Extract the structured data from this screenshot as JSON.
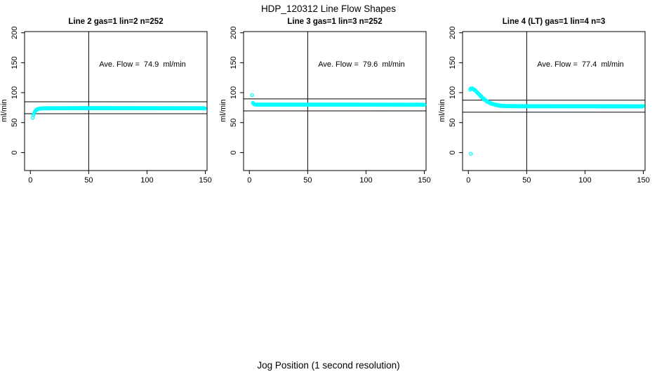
{
  "figure": {
    "title": "HDP_120312  Line Flow Shapes",
    "xlabel": "Jog Position (1 second resolution)",
    "background": "#ffffff",
    "axis_color": "#000000"
  },
  "chart_data": [
    {
      "type": "scatter",
      "title": "Line 2 gas=1 lin=2 n=252",
      "n": 252,
      "ylabel": "ml/min",
      "annotation": "Ave. Flow =  74.9  ml/min",
      "ave_flow": 74.9,
      "point_color": "#00ffff",
      "x_ticks": [
        0,
        50,
        100,
        150
      ],
      "y_ticks": [
        0,
        50,
        100,
        150,
        200
      ],
      "xlim": [
        -5,
        151.5
      ],
      "ylim": [
        -30,
        202
      ],
      "vline_x": 50,
      "hlines_y": [
        64.9,
        84.9
      ],
      "series": {
        "name": "flow-trace",
        "x_start": 2,
        "x_end": 150,
        "x_step": 0.6,
        "wobble": 0.4,
        "shape_points": [
          [
            2,
            58
          ],
          [
            2.6,
            62.5
          ],
          [
            3.2,
            65.5
          ],
          [
            3.8,
            68
          ],
          [
            4.4,
            69.8
          ],
          [
            5,
            71
          ],
          [
            6,
            72.3
          ],
          [
            7,
            73
          ],
          [
            8,
            73.4
          ],
          [
            10,
            73.8
          ],
          [
            15,
            74
          ],
          [
            50,
            74.2
          ],
          [
            150,
            74
          ]
        ]
      },
      "outliers": []
    },
    {
      "type": "scatter",
      "title": "Line 3 gas=1 lin=3 n=252",
      "n": 252,
      "ylabel": "ml/min",
      "annotation": "Ave. Flow =  79.6  ml/min",
      "ave_flow": 79.6,
      "point_color": "#00ffff",
      "x_ticks": [
        0,
        50,
        100,
        150
      ],
      "y_ticks": [
        0,
        50,
        100,
        150,
        200
      ],
      "xlim": [
        -5,
        151.5
      ],
      "ylim": [
        -30,
        202
      ],
      "vline_x": 50,
      "hlines_y": [
        69.6,
        89.6
      ],
      "series": {
        "name": "flow-trace",
        "x_start": 3,
        "x_end": 150,
        "x_step": 0.6,
        "wobble": 0.4,
        "shape_points": [
          [
            3,
            83
          ],
          [
            3.6,
            81.4
          ],
          [
            4.2,
            80.7
          ],
          [
            5,
            80.3
          ],
          [
            6,
            80.1
          ],
          [
            10,
            80
          ],
          [
            80,
            80
          ],
          [
            150,
            79.9
          ]
        ]
      },
      "outliers": [
        [
          2.4,
          96
        ]
      ]
    },
    {
      "type": "scatter",
      "title": "Line 4 (LT) gas=1 lin=4 n=3",
      "n": 3,
      "ylabel": "ml/min",
      "annotation": "Ave. Flow =  77.4  ml/min",
      "ave_flow": 77.4,
      "point_color": "#00ffff",
      "x_ticks": [
        0,
        50,
        100,
        150
      ],
      "y_ticks": [
        0,
        50,
        100,
        150,
        200
      ],
      "xlim": [
        -5,
        151.5
      ],
      "ylim": [
        -30,
        202
      ],
      "vline_x": 50,
      "hlines_y": [
        67.4,
        87.4
      ],
      "series": {
        "name": "flow-trace",
        "x_start": 1.5,
        "x_end": 150,
        "x_step": 0.6,
        "wobble": 0.5,
        "shape_points": [
          [
            1.5,
            105
          ],
          [
            2,
            106.5
          ],
          [
            3,
            107
          ],
          [
            4,
            106.5
          ],
          [
            5,
            105
          ],
          [
            6,
            103.5
          ],
          [
            7,
            101.5
          ],
          [
            8,
            99.5
          ],
          [
            9,
            97.5
          ],
          [
            10,
            95.5
          ],
          [
            11,
            93.5
          ],
          [
            12,
            91.5
          ],
          [
            13,
            89.8
          ],
          [
            14,
            88.2
          ],
          [
            15,
            86.8
          ],
          [
            16,
            85.5
          ],
          [
            17,
            84.4
          ],
          [
            18,
            83.4
          ],
          [
            19,
            82.5
          ],
          [
            20,
            81.7
          ],
          [
            21,
            81
          ],
          [
            22,
            80.4
          ],
          [
            23,
            79.9
          ],
          [
            24,
            79.4
          ],
          [
            25,
            79
          ],
          [
            27,
            78.4
          ],
          [
            29,
            78
          ],
          [
            32,
            77.7
          ],
          [
            36,
            77.5
          ],
          [
            45,
            77.4
          ],
          [
            60,
            77.4
          ],
          [
            100,
            77.3
          ],
          [
            150,
            77.2
          ]
        ]
      },
      "outliers": [
        [
          2,
          -2
        ]
      ]
    }
  ]
}
